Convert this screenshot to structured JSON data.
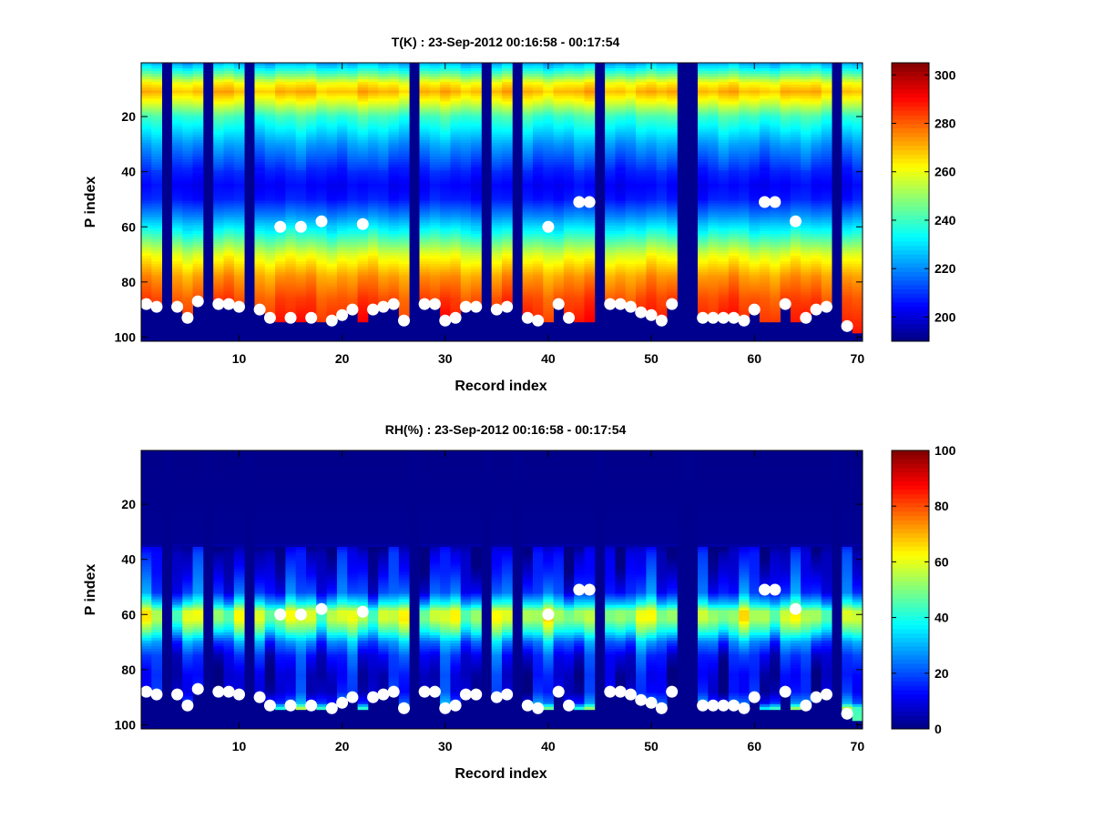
{
  "chart_data": [
    {
      "type": "heatmap",
      "title": "T(K) : 23-Sep-2012 00:16:58 - 00:17:54",
      "xlabel": "Record index",
      "ylabel": "P index",
      "xlim": [
        0.5,
        70.5
      ],
      "ylim": [
        0.5,
        101.5
      ],
      "y_reversed": true,
      "xticks": [
        10,
        20,
        30,
        40,
        50,
        60,
        70
      ],
      "yticks": [
        20,
        40,
        60,
        80,
        100
      ],
      "colormap": "jet",
      "clim": [
        190,
        305
      ],
      "colorbar_ticks": [
        200,
        220,
        240,
        260,
        280,
        300
      ],
      "profile_levels": [
        1,
        4,
        8,
        11,
        15,
        20,
        30,
        40,
        45,
        50,
        56,
        62,
        70,
        78,
        86,
        94,
        100
      ],
      "profile_values": [
        225,
        240,
        262,
        270,
        258,
        240,
        222,
        208,
        204,
        207,
        220,
        235,
        258,
        273,
        282,
        287,
        290
      ],
      "variation": 5
    },
    {
      "type": "heatmap",
      "title": "RH(%) : 23-Sep-2012 00:16:58 - 00:17:54",
      "xlabel": "Record index",
      "ylabel": "P index",
      "xlim": [
        0.5,
        70.5
      ],
      "ylim": [
        0.5,
        101.5
      ],
      "y_reversed": true,
      "xticks": [
        10,
        20,
        30,
        40,
        50,
        60,
        70
      ],
      "yticks": [
        20,
        40,
        60,
        80,
        100
      ],
      "colormap": "jet",
      "clim": [
        0,
        100
      ],
      "colorbar_ticks": [
        0,
        20,
        40,
        60,
        80,
        100
      ],
      "profile_levels": [
        1,
        34,
        38,
        45,
        52,
        56,
        59,
        62,
        66,
        70,
        75,
        82,
        88,
        92,
        94,
        100
      ],
      "profile_values": [
        1,
        2,
        8,
        12,
        18,
        35,
        55,
        55,
        42,
        25,
        14,
        9,
        10,
        20,
        45,
        50
      ],
      "variation": 12
    }
  ],
  "shared": {
    "records": 70,
    "levels": 100,
    "missing_records": [
      3,
      7,
      11,
      27,
      34,
      37,
      45,
      53,
      54,
      68
    ],
    "markers": [
      [
        1,
        88
      ],
      [
        2,
        89
      ],
      [
        4,
        89
      ],
      [
        5,
        93
      ],
      [
        6,
        87
      ],
      [
        8,
        88
      ],
      [
        9,
        88
      ],
      [
        10,
        89
      ],
      [
        12,
        90
      ],
      [
        13,
        93
      ],
      [
        14,
        60
      ],
      [
        15,
        93
      ],
      [
        16,
        60
      ],
      [
        17,
        93
      ],
      [
        18,
        58
      ],
      [
        19,
        94
      ],
      [
        20,
        92
      ],
      [
        21,
        90
      ],
      [
        22,
        59
      ],
      [
        23,
        90
      ],
      [
        24,
        89
      ],
      [
        25,
        88
      ],
      [
        26,
        94
      ],
      [
        28,
        88
      ],
      [
        29,
        88
      ],
      [
        30,
        94
      ],
      [
        31,
        93
      ],
      [
        32,
        89
      ],
      [
        33,
        89
      ],
      [
        35,
        90
      ],
      [
        36,
        89
      ],
      [
        38,
        93
      ],
      [
        39,
        94
      ],
      [
        40,
        60
      ],
      [
        41,
        88
      ],
      [
        42,
        93
      ],
      [
        43,
        51
      ],
      [
        44,
        51
      ],
      [
        46,
        88
      ],
      [
        47,
        88
      ],
      [
        48,
        89
      ],
      [
        49,
        91
      ],
      [
        50,
        92
      ],
      [
        51,
        94
      ],
      [
        52,
        88
      ],
      [
        55,
        93
      ],
      [
        56,
        93
      ],
      [
        57,
        93
      ],
      [
        58,
        93
      ],
      [
        59,
        94
      ],
      [
        60,
        90
      ],
      [
        61,
        51
      ],
      [
        62,
        51
      ],
      [
        63,
        88
      ],
      [
        64,
        58
      ],
      [
        65,
        93
      ],
      [
        66,
        90
      ],
      [
        67,
        89
      ],
      [
        69,
        96
      ]
    ],
    "default_surface": 94,
    "last_record_surface": 98,
    "marker_color": "#ffffff",
    "missing_color": "#00008f"
  }
}
